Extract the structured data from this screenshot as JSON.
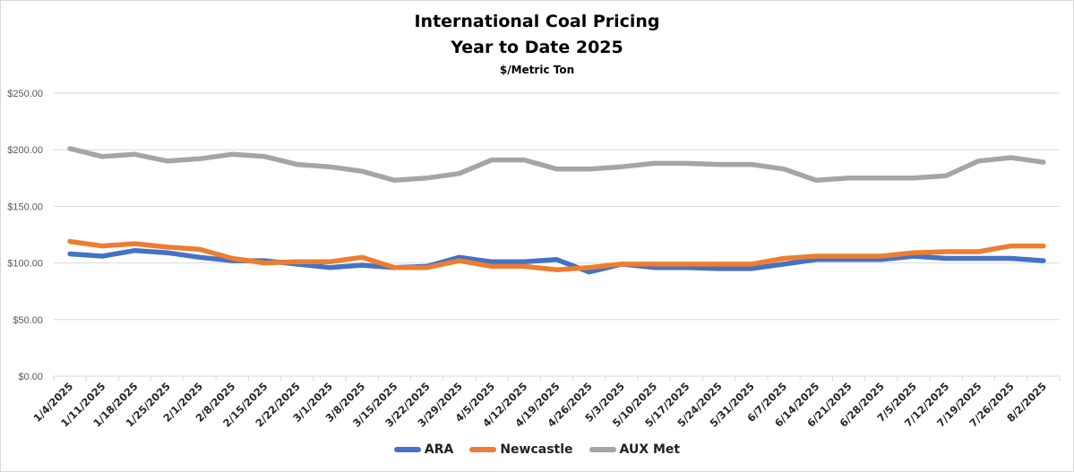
{
  "chart_data": {
    "type": "line",
    "title": "International Coal Pricing",
    "subtitle": "Year to Date 2025",
    "units_label": "$/Metric Ton",
    "ylim": [
      0,
      250
    ],
    "yticks": [
      "$0.00",
      "$50.00",
      "$100.00",
      "$150.00",
      "$200.00",
      "$250.00"
    ],
    "ytick_values": [
      0,
      50,
      100,
      150,
      200,
      250
    ],
    "grid": true,
    "legend_position": "bottom",
    "categories": [
      "1/4/2025",
      "1/11/2025",
      "1/18/2025",
      "1/25/2025",
      "2/1/2025",
      "2/8/2025",
      "2/15/2025",
      "2/22/2025",
      "3/1/2025",
      "3/8/2025",
      "3/15/2025",
      "3/22/2025",
      "3/29/2025",
      "4/5/2025",
      "4/12/2025",
      "4/19/2025",
      "4/26/2025",
      "5/3/2025",
      "5/10/2025",
      "5/17/2025",
      "5/24/2025",
      "5/31/2025",
      "6/7/2025",
      "6/14/2025",
      "6/21/2025",
      "6/28/2025",
      "7/5/2025",
      "7/12/2025",
      "7/19/2025",
      "7/26/2025",
      "8/2/2025"
    ],
    "series": [
      {
        "name": "ARA",
        "color": "#4472c4",
        "values": [
          108,
          106,
          111,
          109,
          105,
          102,
          102,
          99,
          96,
          98,
          96,
          97,
          105,
          101,
          101,
          103,
          92,
          99,
          96,
          96,
          95,
          95,
          99,
          103,
          103,
          103,
          106,
          104,
          104,
          104,
          102
        ]
      },
      {
        "name": "Newcastle",
        "color": "#ed7d31",
        "values": [
          119,
          115,
          117,
          114,
          112,
          104,
          100,
          101,
          101,
          105,
          96,
          96,
          102,
          97,
          97,
          94,
          96,
          99,
          99,
          99,
          99,
          99,
          104,
          106,
          106,
          106,
          109,
          110,
          110,
          115,
          115
        ]
      },
      {
        "name": "AUX Met",
        "color": "#a5a5a5",
        "values": [
          201,
          194,
          196,
          190,
          192,
          196,
          194,
          187,
          185,
          181,
          173,
          175,
          179,
          191,
          191,
          183,
          183,
          185,
          188,
          188,
          187,
          187,
          183,
          173,
          175,
          175,
          175,
          177,
          190,
          193,
          189
        ]
      }
    ]
  }
}
